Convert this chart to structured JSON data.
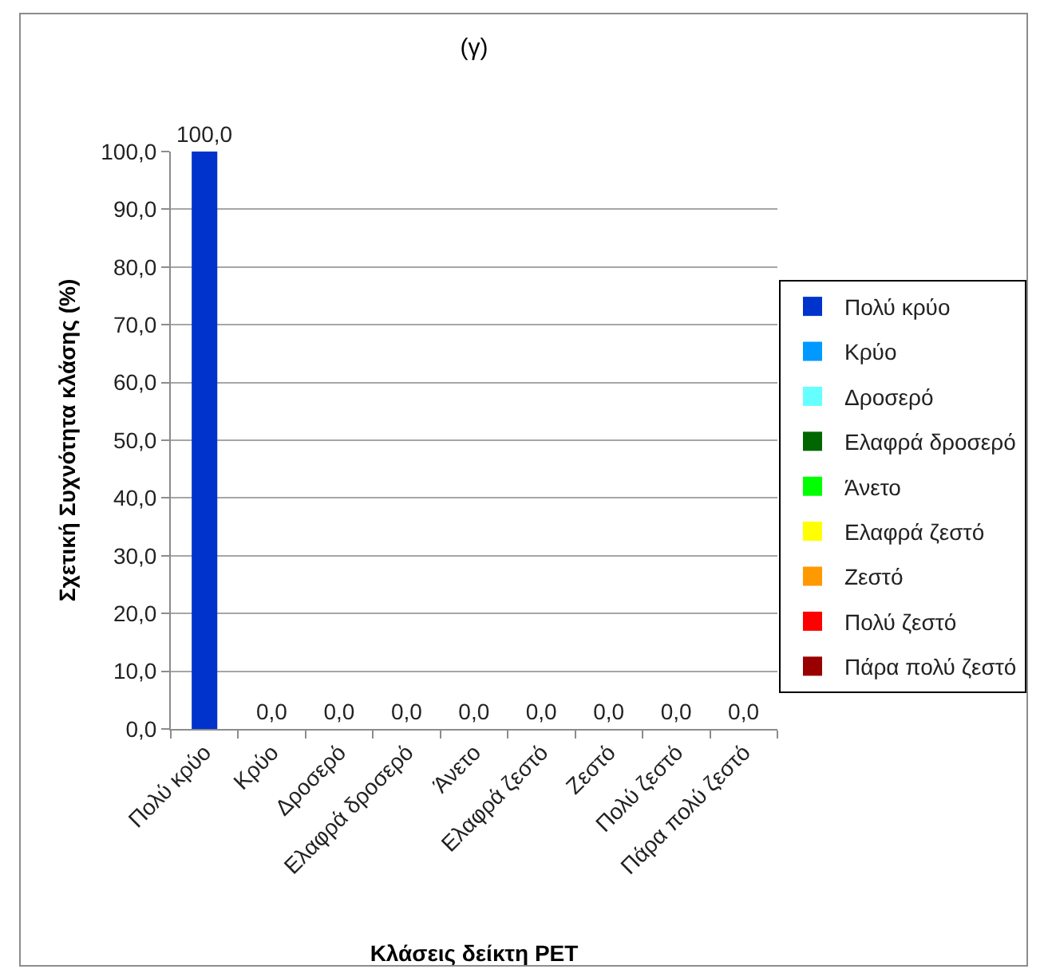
{
  "chart_data": {
    "type": "bar",
    "title": "(γ)",
    "xlabel": "Κλάσεις δείκτη PET",
    "ylabel": "Σχετική Συχνότητα κλάσης (%)",
    "categories": [
      "Πολύ κρύο",
      "Κρύο",
      "Δροσερό",
      "Ελαφρά δροσερό",
      "Άνετο",
      "Ελαφρά ζεστό",
      "Ζεστό",
      "Πολύ ζεστό",
      "Πάρα πολύ ζεστό"
    ],
    "series": [
      {
        "name": "Πολύ κρύο",
        "color": "#0033cc",
        "values": [
          100.0,
          null,
          null,
          null,
          null,
          null,
          null,
          null,
          null
        ],
        "value_labels": [
          "100,0",
          null,
          null,
          null,
          null,
          null,
          null,
          null,
          null
        ]
      },
      {
        "name": "Κρύο",
        "color": "#0099ff",
        "values": [
          null,
          0.0,
          null,
          null,
          null,
          null,
          null,
          null,
          null
        ],
        "value_labels": [
          null,
          "0,0",
          null,
          null,
          null,
          null,
          null,
          null,
          null
        ]
      },
      {
        "name": "Δροσερό",
        "color": "#66ffff",
        "values": [
          null,
          null,
          0.0,
          null,
          null,
          null,
          null,
          null,
          null
        ],
        "value_labels": [
          null,
          null,
          "0,0",
          null,
          null,
          null,
          null,
          null,
          null
        ]
      },
      {
        "name": "Ελαφρά δροσερό",
        "color": "#006600",
        "values": [
          null,
          null,
          null,
          0.0,
          null,
          null,
          null,
          null,
          null
        ],
        "value_labels": [
          null,
          null,
          null,
          "0,0",
          null,
          null,
          null,
          null,
          null
        ]
      },
      {
        "name": "Άνετο",
        "color": "#00ff00",
        "values": [
          null,
          null,
          null,
          null,
          0.0,
          null,
          null,
          null,
          null
        ],
        "value_labels": [
          null,
          null,
          null,
          null,
          "0,0",
          null,
          null,
          null,
          null
        ]
      },
      {
        "name": "Ελαφρά ζεστό",
        "color": "#ffff00",
        "values": [
          null,
          null,
          null,
          null,
          null,
          0.0,
          null,
          null,
          null
        ],
        "value_labels": [
          null,
          null,
          null,
          null,
          null,
          "0,0",
          null,
          null,
          null
        ]
      },
      {
        "name": "Ζεστό",
        "color": "#ff9900",
        "values": [
          null,
          null,
          null,
          null,
          null,
          null,
          0.0,
          null,
          null
        ],
        "value_labels": [
          null,
          null,
          null,
          null,
          null,
          null,
          "0,0",
          null,
          null
        ]
      },
      {
        "name": "Πολύ ζεστό",
        "color": "#ff0000",
        "values": [
          null,
          null,
          null,
          null,
          null,
          null,
          null,
          0.0,
          null
        ],
        "value_labels": [
          null,
          null,
          null,
          null,
          null,
          null,
          null,
          "0,0",
          null
        ]
      },
      {
        "name": "Πάρα πολύ ζεστό",
        "color": "#990000",
        "values": [
          null,
          null,
          null,
          null,
          null,
          null,
          null,
          null,
          0.0
        ],
        "value_labels": [
          null,
          null,
          null,
          null,
          null,
          null,
          null,
          null,
          "0,0"
        ]
      }
    ],
    "ylim": [
      0,
      100
    ],
    "yticks": [
      {
        "value": 0,
        "label": "0,0"
      },
      {
        "value": 10,
        "label": "10,0"
      },
      {
        "value": 20,
        "label": "20,0"
      },
      {
        "value": 30,
        "label": "30,0"
      },
      {
        "value": 40,
        "label": "40,0"
      },
      {
        "value": 50,
        "label": "50,0"
      },
      {
        "value": 60,
        "label": "60,0"
      },
      {
        "value": 70,
        "label": "70,0"
      },
      {
        "value": 80,
        "label": "80,0"
      },
      {
        "value": 90,
        "label": "90,0"
      },
      {
        "value": 100,
        "label": "100,0"
      }
    ],
    "grid": "y",
    "legend": "right"
  }
}
